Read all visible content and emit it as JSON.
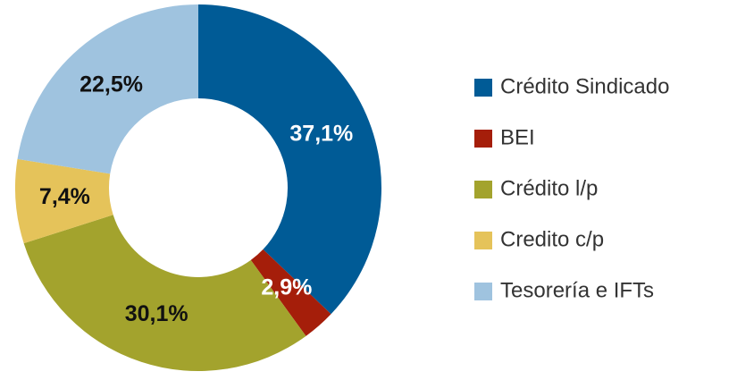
{
  "chart_data": {
    "type": "donut",
    "categories": [
      "Crédito Sindicado",
      "BEI",
      "Crédito l/p",
      "Credito c/p",
      "Tesorería e IFTs"
    ],
    "values": [
      37.1,
      2.9,
      30.1,
      7.4,
      22.5
    ],
    "value_labels": [
      "37,1%",
      "2,9%",
      "30,1%",
      "7,4%",
      "22,5%"
    ],
    "colors": [
      "#005b96",
      "#a51e0a",
      "#a3a32d",
      "#e5c35a",
      "#9fc3df"
    ],
    "label_colors": [
      "#ffffff",
      "#ffffff",
      "#111111",
      "#111111",
      "#111111"
    ],
    "legend": "right"
  }
}
